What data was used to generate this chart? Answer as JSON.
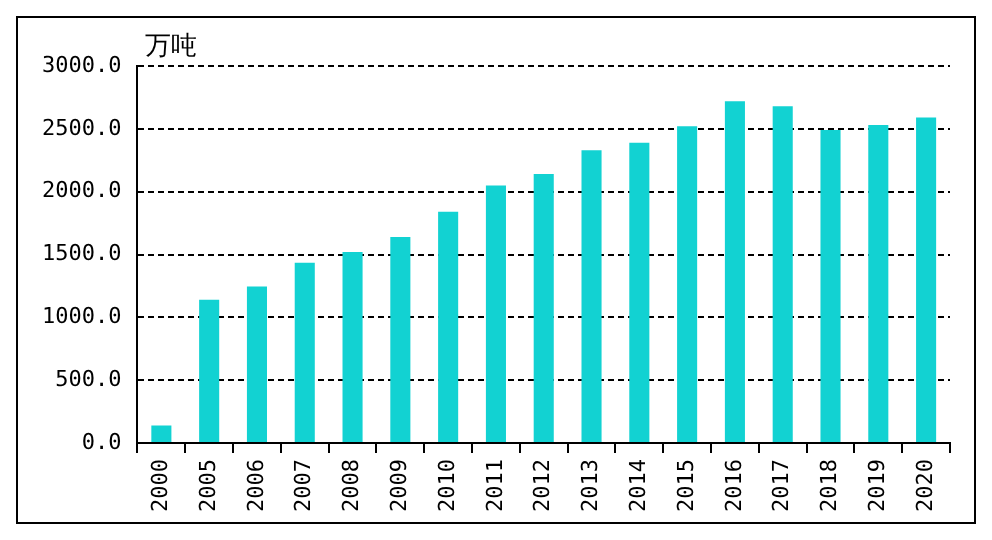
{
  "chart_data": {
    "type": "bar",
    "ylabel": "万吨",
    "categories": [
      "2000",
      "2005",
      "2006",
      "2007",
      "2008",
      "2009",
      "2010",
      "2011",
      "2012",
      "2013",
      "2014",
      "2015",
      "2016",
      "2017",
      "2018",
      "2019",
      "2020"
    ],
    "values": [
      140,
      1140,
      1245,
      1435,
      1520,
      1640,
      1840,
      2050,
      2140,
      2330,
      2390,
      2520,
      2720,
      2680,
      2490,
      2530,
      2590
    ],
    "color": "#12d2d2",
    "ylim": [
      0,
      3000
    ],
    "yticks": [
      {
        "value": 0,
        "label": "0.0"
      },
      {
        "value": 500,
        "label": "500.0"
      },
      {
        "value": 1000,
        "label": "1000.0"
      },
      {
        "value": 1500,
        "label": "1500.0"
      },
      {
        "value": 2000,
        "label": "2000.0"
      },
      {
        "value": 2500,
        "label": "2500.0"
      },
      {
        "value": 3000,
        "label": "3000.0"
      }
    ],
    "grid": "y",
    "legend": false
  }
}
